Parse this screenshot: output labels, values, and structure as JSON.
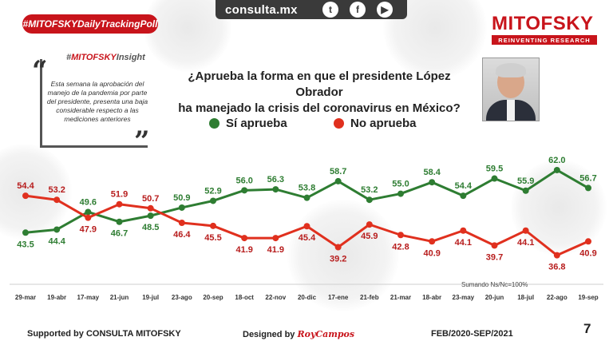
{
  "header": {
    "site": "consulta.mx",
    "social": [
      {
        "icon": "twitter-icon",
        "glyph": "t"
      },
      {
        "icon": "facebook-icon",
        "glyph": "f"
      },
      {
        "icon": "youtube-icon",
        "glyph": "▶"
      }
    ],
    "hashtag": "#MITOFSKYDailyTrackingPoll",
    "brand": "MITOFSKY",
    "brand_tagline": "REINVENTING RESEARCH"
  },
  "insight": {
    "title_prefix": "#",
    "title_brand": "MITOFSKY",
    "title_suffix": "Insight",
    "text": "Esta semana la aprobación del manejo de la pandemia por parte del presidente, presenta una baja considerable respecto a las mediciones anteriores"
  },
  "question": {
    "line1": "¿Aprueba la forma en que el presidente López Obrador",
    "line2": "ha manejado la crisis del coronavirus en México?"
  },
  "note": "Sumando Ns/Nc=100%",
  "footer": {
    "supported": "Supported by  CONSULTA  MITOFSKY",
    "designed_prefix": "Designed by",
    "designed_name": "RoyCampos",
    "period": "FEB/2020-SEP/2021",
    "page": "7"
  },
  "colors": {
    "approve": "#2e7d32",
    "disapprove": "#e0301e",
    "brand": "#c8141b"
  },
  "chart_data": {
    "type": "line",
    "categories": [
      "29-mar",
      "19-abr",
      "17-may",
      "21-jun",
      "19-jul",
      "23-ago",
      "20-sep",
      "18-oct",
      "22-nov",
      "20-dic",
      "17-ene",
      "21-feb",
      "21-mar",
      "18-abr",
      "23-may",
      "20-jun",
      "18-jul",
      "22-ago",
      "19-sep"
    ],
    "series": [
      {
        "name": "Sí aprueba",
        "color": "#2e7d32",
        "label_color": "#2e7d32",
        "values": [
          43.5,
          44.4,
          49.6,
          46.7,
          48.5,
          50.9,
          52.9,
          56.0,
          56.3,
          53.8,
          58.7,
          53.2,
          55.0,
          58.4,
          54.4,
          59.5,
          55.9,
          62.0,
          56.7
        ]
      },
      {
        "name": "No aprueba",
        "color": "#e0301e",
        "label_color": "#b71c1c",
        "values": [
          54.4,
          53.2,
          47.9,
          51.9,
          50.7,
          46.4,
          45.5,
          41.9,
          41.9,
          45.4,
          39.2,
          45.9,
          42.8,
          40.9,
          44.1,
          39.7,
          44.1,
          36.8,
          40.9
        ]
      }
    ],
    "ylim": [
      32,
      66
    ]
  }
}
